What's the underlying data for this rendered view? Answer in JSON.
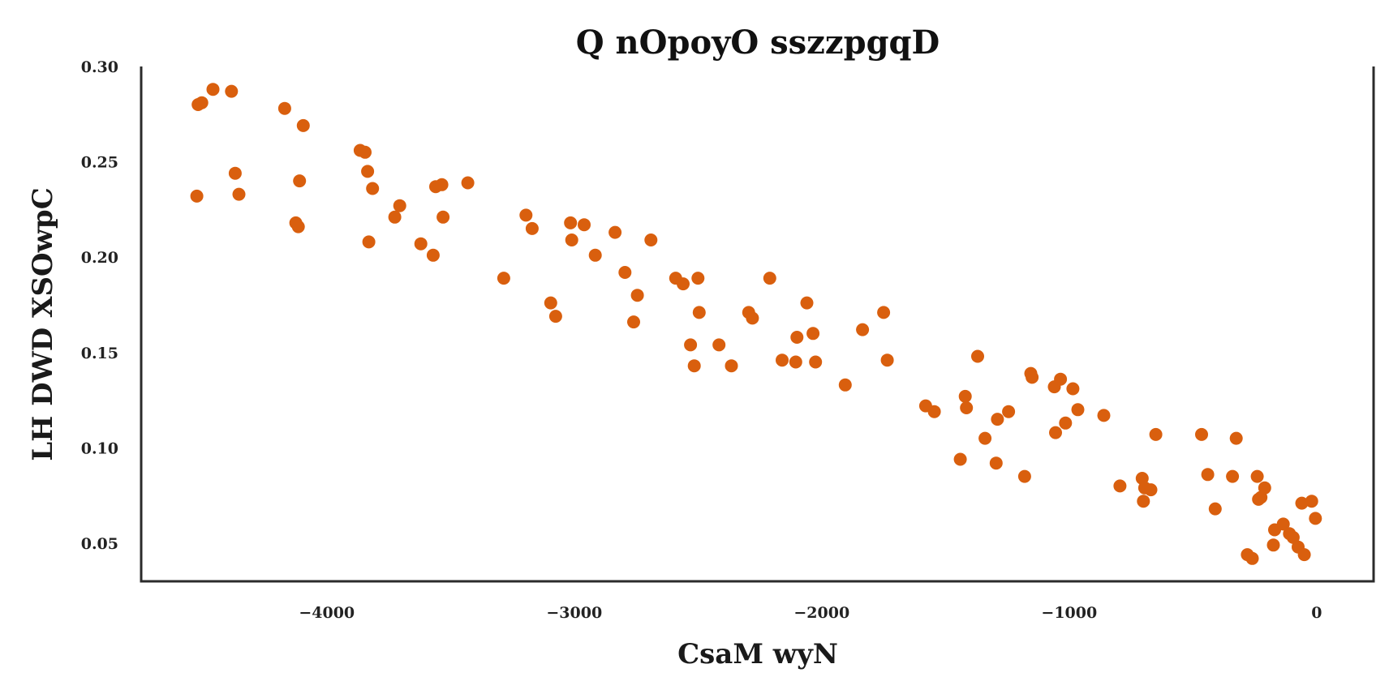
{
  "chart_data": {
    "type": "scatter",
    "title": "Q nOpoyO sszzpgqD",
    "xlabel": "CsaM wyN",
    "ylabel": "LH DWD  XSOwpC",
    "xlim": [
      -4750,
      230
    ],
    "ylim": [
      0.03,
      0.3
    ],
    "xticks": [
      -4000,
      -3000,
      -2000,
      -1000,
      0
    ],
    "xtick_labels": [
      "−4000",
      "−3000",
      "−2000",
      "−1000",
      "0"
    ],
    "yticks": [
      0.05,
      0.1,
      0.15,
      0.2,
      0.25,
      0.3
    ],
    "ytick_labels": [
      "0.05",
      "0.10",
      "0.15",
      "0.20",
      "0.25",
      "0.30"
    ],
    "grid": false,
    "marker_color": "#d95f0e",
    "series": [
      {
        "points": [
          [
            -4520,
            0.28
          ],
          [
            -4505,
            0.281
          ],
          [
            -4460,
            0.288
          ],
          [
            -4385,
            0.287
          ],
          [
            -4525,
            0.232
          ],
          [
            -4370,
            0.244
          ],
          [
            -4355,
            0.233
          ],
          [
            -4170,
            0.278
          ],
          [
            -4095,
            0.269
          ],
          [
            -4110,
            0.24
          ],
          [
            -4125,
            0.218
          ],
          [
            -4115,
            0.216
          ],
          [
            -3865,
            0.256
          ],
          [
            -3845,
            0.255
          ],
          [
            -3835,
            0.245
          ],
          [
            -3815,
            0.236
          ],
          [
            -3830,
            0.208
          ],
          [
            -3705,
            0.227
          ],
          [
            -3725,
            0.221
          ],
          [
            -3620,
            0.207
          ],
          [
            -3570,
            0.201
          ],
          [
            -3560,
            0.237
          ],
          [
            -3535,
            0.238
          ],
          [
            -3530,
            0.221
          ],
          [
            -3430,
            0.239
          ],
          [
            -3285,
            0.189
          ],
          [
            -3195,
            0.222
          ],
          [
            -3170,
            0.215
          ],
          [
            -3095,
            0.176
          ],
          [
            -3075,
            0.169
          ],
          [
            -3015,
            0.218
          ],
          [
            -3010,
            0.209
          ],
          [
            -2960,
            0.217
          ],
          [
            -2915,
            0.201
          ],
          [
            -2835,
            0.213
          ],
          [
            -2795,
            0.192
          ],
          [
            -2760,
            0.166
          ],
          [
            -2745,
            0.18
          ],
          [
            -2690,
            0.209
          ],
          [
            -2590,
            0.189
          ],
          [
            -2560,
            0.186
          ],
          [
            -2530,
            0.154
          ],
          [
            -2515,
            0.143
          ],
          [
            -2500,
            0.189
          ],
          [
            -2495,
            0.171
          ],
          [
            -2415,
            0.154
          ],
          [
            -2365,
            0.143
          ],
          [
            -2295,
            0.171
          ],
          [
            -2280,
            0.168
          ],
          [
            -2210,
            0.189
          ],
          [
            -2160,
            0.146
          ],
          [
            -2105,
            0.145
          ],
          [
            -2100,
            0.158
          ],
          [
            -2060,
            0.176
          ],
          [
            -2035,
            0.16
          ],
          [
            -2025,
            0.145
          ],
          [
            -1905,
            0.133
          ],
          [
            -1835,
            0.162
          ],
          [
            -1750,
            0.171
          ],
          [
            -1735,
            0.146
          ],
          [
            -1580,
            0.122
          ],
          [
            -1545,
            0.119
          ],
          [
            -1440,
            0.094
          ],
          [
            -1420,
            0.127
          ],
          [
            -1415,
            0.121
          ],
          [
            -1370,
            0.148
          ],
          [
            -1340,
            0.105
          ],
          [
            -1295,
            0.092
          ],
          [
            -1290,
            0.115
          ],
          [
            -1245,
            0.119
          ],
          [
            -1180,
            0.085
          ],
          [
            -1155,
            0.139
          ],
          [
            -1150,
            0.137
          ],
          [
            -1060,
            0.132
          ],
          [
            -1055,
            0.108
          ],
          [
            -1035,
            0.136
          ],
          [
            -1015,
            0.113
          ],
          [
            -985,
            0.131
          ],
          [
            -965,
            0.12
          ],
          [
            -860,
            0.117
          ],
          [
            -795,
            0.08
          ],
          [
            -705,
            0.084
          ],
          [
            -700,
            0.072
          ],
          [
            -695,
            0.079
          ],
          [
            -670,
            0.078
          ],
          [
            -650,
            0.107
          ],
          [
            -465,
            0.107
          ],
          [
            -440,
            0.086
          ],
          [
            -410,
            0.068
          ],
          [
            -340,
            0.085
          ],
          [
            -325,
            0.105
          ],
          [
            -280,
            0.044
          ],
          [
            -260,
            0.042
          ],
          [
            -240,
            0.085
          ],
          [
            -235,
            0.073
          ],
          [
            -225,
            0.074
          ],
          [
            -210,
            0.079
          ],
          [
            -175,
            0.049
          ],
          [
            -170,
            0.057
          ],
          [
            -135,
            0.06
          ],
          [
            -110,
            0.055
          ],
          [
            -95,
            0.053
          ],
          [
            -75,
            0.048
          ],
          [
            -60,
            0.071
          ],
          [
            -50,
            0.044
          ],
          [
            -20,
            0.072
          ],
          [
            -5,
            0.063
          ]
        ]
      }
    ]
  }
}
